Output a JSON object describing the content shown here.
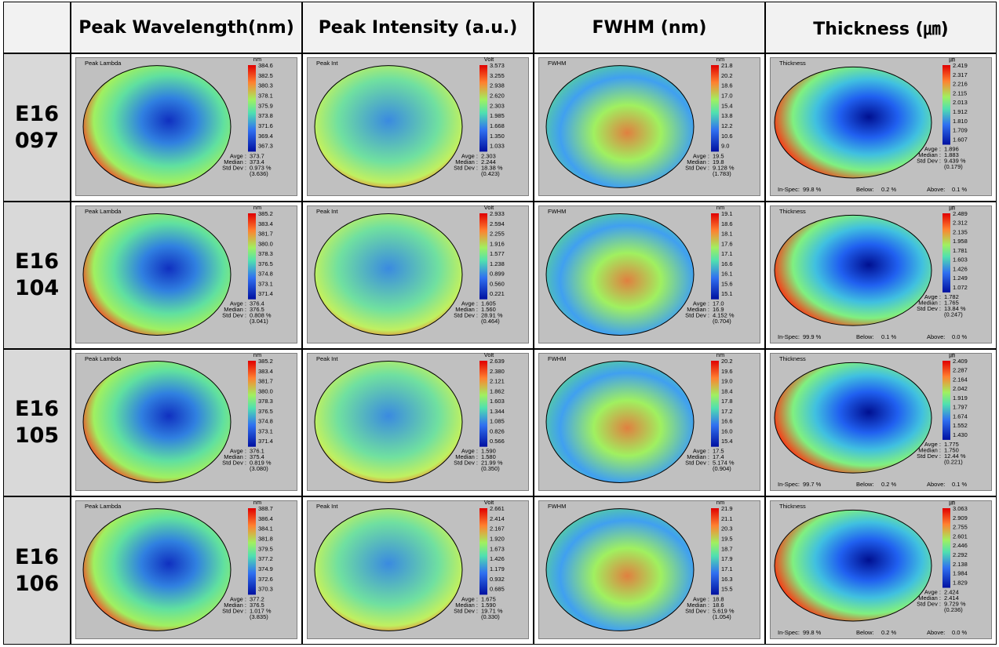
{
  "header": {
    "columns": [
      "Peak Wavelength(nm)",
      "Peak Intensity (a.u.)",
      "FWHM (nm)",
      "Thickness (㎛)"
    ]
  },
  "labels": {
    "avge": "Avge :",
    "median": "Median :",
    "std_dev": "Std Dev :",
    "in_spec": "In-Spec:",
    "below": "Below:",
    "above": "Above:"
  },
  "rows": [
    {
      "id": [
        "E16",
        "097"
      ],
      "maps": [
        {
          "title": "Peak Lambda",
          "unit": "nm",
          "scale": [
            "384.6",
            "382.5",
            "380.3",
            "378.1",
            "375.9",
            "373.8",
            "371.6",
            "369.4",
            "367.3"
          ],
          "avge": "373.7",
          "median": "373.4",
          "std_dev": "0.973 %",
          "std_dev_abs": "(3.636)"
        },
        {
          "title": "Peak Int",
          "unit": "Volt",
          "scale": [
            "3.573",
            "3.255",
            "2.938",
            "2.620",
            "2.303",
            "1.985",
            "1.668",
            "1.350",
            "1.033"
          ],
          "avge": "2.303",
          "median": "2.244",
          "std_dev": "18.38 %",
          "std_dev_abs": "(0.423)"
        },
        {
          "title": "FWHM",
          "unit": "nm",
          "scale": [
            "21.8",
            "20.2",
            "18.6",
            "17.0",
            "15.4",
            "13.8",
            "12.2",
            "10.6",
            "9.0"
          ],
          "avge": "19.5",
          "median": "19.8",
          "std_dev": "9.128 %",
          "std_dev_abs": "(1.783)"
        },
        {
          "title": "Thickness",
          "unit": "㎛",
          "scale": [
            "2.419",
            "2.317",
            "2.216",
            "2.115",
            "2.013",
            "1.912",
            "1.810",
            "1.709",
            "1.607"
          ],
          "avge": "1.896",
          "median": "1.883",
          "std_dev": "9.439 %",
          "std_dev_abs": "(0.179)",
          "in_spec": "99.8 %",
          "below": "0.2 %",
          "above": "0.1 %"
        }
      ]
    },
    {
      "id": [
        "E16",
        "104"
      ],
      "maps": [
        {
          "title": "Peak Lambda",
          "unit": "nm",
          "scale": [
            "385.2",
            "383.4",
            "381.7",
            "380.0",
            "378.3",
            "376.5",
            "374.8",
            "373.1",
            "371.4"
          ],
          "avge": "376.4",
          "median": "376.5",
          "std_dev": "0.808 %",
          "std_dev_abs": "(3.041)"
        },
        {
          "title": "Peak Int",
          "unit": "Volt",
          "scale": [
            "2.933",
            "2.594",
            "2.255",
            "1.916",
            "1.577",
            "1.238",
            "0.899",
            "0.560",
            "0.221"
          ],
          "avge": "1.605",
          "median": "1.560",
          "std_dev": "28.91 %",
          "std_dev_abs": "(0.464)"
        },
        {
          "title": "FWHM",
          "unit": "nm",
          "scale": [
            "19.1",
            "18.6",
            "18.1",
            "17.6",
            "17.1",
            "16.6",
            "16.1",
            "15.6",
            "15.1"
          ],
          "avge": "17.0",
          "median": "16.9",
          "std_dev": "4.152 %",
          "std_dev_abs": "(0.704)"
        },
        {
          "title": "Thickness",
          "unit": "㎛",
          "scale": [
            "2.489",
            "2.312",
            "2.135",
            "1.958",
            "1.781",
            "1.603",
            "1.426",
            "1.249",
            "1.072"
          ],
          "avge": "1.782",
          "median": "1.765",
          "std_dev": "13.84 %",
          "std_dev_abs": "(0.247)",
          "in_spec": "99.9 %",
          "below": "0.1 %",
          "above": "0.0 %"
        }
      ]
    },
    {
      "id": [
        "E16",
        "105"
      ],
      "maps": [
        {
          "title": "Peak Lambda",
          "unit": "nm",
          "scale": [
            "385.2",
            "383.4",
            "381.7",
            "380.0",
            "378.3",
            "376.5",
            "374.8",
            "373.1",
            "371.4"
          ],
          "avge": "376.1",
          "median": "375.4",
          "std_dev": "0.819 %",
          "std_dev_abs": "(3.080)"
        },
        {
          "title": "Peak Int",
          "unit": "Volt",
          "scale": [
            "2.639",
            "2.380",
            "2.121",
            "1.862",
            "1.603",
            "1.344",
            "1.085",
            "0.826",
            "0.566"
          ],
          "avge": "1.590",
          "median": "1.580",
          "std_dev": "21.99 %",
          "std_dev_abs": "(0.350)"
        },
        {
          "title": "FWHM",
          "unit": "nm",
          "scale": [
            "20.2",
            "19.6",
            "19.0",
            "18.4",
            "17.8",
            "17.2",
            "16.6",
            "16.0",
            "15.4"
          ],
          "avge": "17.5",
          "median": "17.4",
          "std_dev": "5.174 %",
          "std_dev_abs": "(0.904)"
        },
        {
          "title": "Thickness",
          "unit": "㎛",
          "scale": [
            "2.409",
            "2.287",
            "2.164",
            "2.042",
            "1.919",
            "1.797",
            "1.674",
            "1.552",
            "1.430"
          ],
          "avge": "1.775",
          "median": "1.750",
          "std_dev": "12.44 %",
          "std_dev_abs": "(0.221)",
          "in_spec": "99.7 %",
          "below": "0.2 %",
          "above": "0.1 %"
        }
      ]
    },
    {
      "id": [
        "E16",
        "106"
      ],
      "maps": [
        {
          "title": "Peak Lambda",
          "unit": "nm",
          "scale": [
            "388.7",
            "386.4",
            "384.1",
            "381.8",
            "379.5",
            "377.2",
            "374.9",
            "372.6",
            "370.3"
          ],
          "avge": "377.2",
          "median": "376.5",
          "std_dev": "1.017 %",
          "std_dev_abs": "(3.835)"
        },
        {
          "title": "Peak Int",
          "unit": "Volt",
          "scale": [
            "2.661",
            "2.414",
            "2.167",
            "1.920",
            "1.673",
            "1.426",
            "1.179",
            "0.932",
            "0.685"
          ],
          "avge": "1.675",
          "median": "1.590",
          "std_dev": "19.71 %",
          "std_dev_abs": "(0.330)"
        },
        {
          "title": "FWHM",
          "unit": "nm",
          "scale": [
            "21.9",
            "21.1",
            "20.3",
            "19.5",
            "18.7",
            "17.9",
            "17.1",
            "16.3",
            "15.5"
          ],
          "avge": "18.8",
          "median": "18.6",
          "std_dev": "5.619 %",
          "std_dev_abs": "(1.054)"
        },
        {
          "title": "Thickness",
          "unit": "㎛",
          "scale": [
            "3.063",
            "2.909",
            "2.755",
            "2.601",
            "2.446",
            "2.292",
            "2.138",
            "1.984",
            "1.829"
          ],
          "avge": "2.424",
          "median": "2.414",
          "std_dev": "9.729 %",
          "std_dev_abs": "(0.236)",
          "in_spec": "99.8 %",
          "below": "0.2 %",
          "above": "0.0 %"
        }
      ]
    }
  ]
}
